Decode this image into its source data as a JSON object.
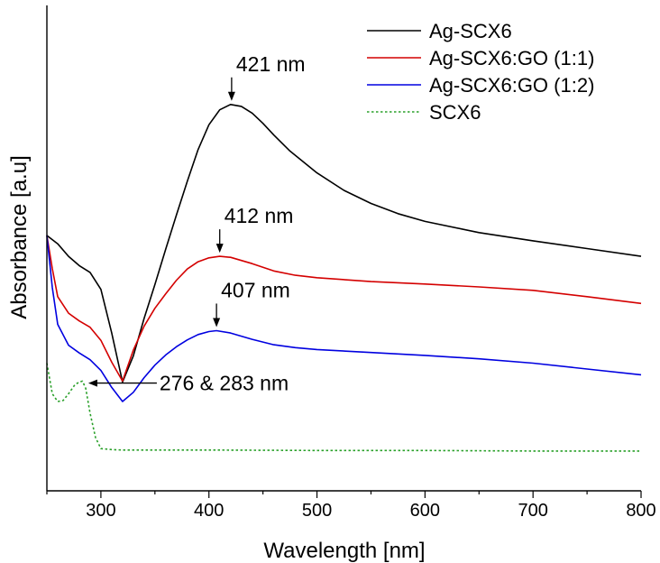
{
  "chart_data": {
    "type": "line",
    "title": "",
    "xlabel": "Wavelength [nm]",
    "ylabel": "Absorbance [a.u]",
    "xlim": [
      250,
      800
    ],
    "ylim": [
      0,
      1
    ],
    "xticks": [
      300,
      400,
      500,
      600,
      700,
      800
    ],
    "xtick_labels": [
      "300",
      "400",
      "500",
      "600",
      "700",
      "800"
    ],
    "yticks_shown": false,
    "legend_position": "top-right",
    "series": [
      {
        "name": "Ag-SCX6",
        "color": "#000000",
        "dash": "solid",
        "points": [
          [
            250,
            0.526
          ],
          [
            260,
            0.509
          ],
          [
            270,
            0.483
          ],
          [
            280,
            0.464
          ],
          [
            290,
            0.45
          ],
          [
            300,
            0.415
          ],
          [
            310,
            0.325
          ],
          [
            320,
            0.224
          ],
          [
            330,
            0.278
          ],
          [
            340,
            0.355
          ],
          [
            350,
            0.425
          ],
          [
            360,
            0.498
          ],
          [
            370,
            0.569
          ],
          [
            380,
            0.638
          ],
          [
            390,
            0.703
          ],
          [
            400,
            0.754
          ],
          [
            410,
            0.785
          ],
          [
            420,
            0.796
          ],
          [
            430,
            0.792
          ],
          [
            440,
            0.778
          ],
          [
            450,
            0.757
          ],
          [
            460,
            0.733
          ],
          [
            475,
            0.7
          ],
          [
            500,
            0.655
          ],
          [
            525,
            0.619
          ],
          [
            550,
            0.592
          ],
          [
            575,
            0.571
          ],
          [
            600,
            0.555
          ],
          [
            650,
            0.532
          ],
          [
            700,
            0.515
          ],
          [
            750,
            0.499
          ],
          [
            800,
            0.483
          ]
        ]
      },
      {
        "name": "Ag-SCX6:GO (1:1)",
        "color": "#d40000",
        "dash": "solid",
        "points": [
          [
            250,
            0.526
          ],
          [
            255,
            0.458
          ],
          [
            260,
            0.4
          ],
          [
            270,
            0.366
          ],
          [
            280,
            0.35
          ],
          [
            290,
            0.337
          ],
          [
            300,
            0.31
          ],
          [
            310,
            0.265
          ],
          [
            320,
            0.226
          ],
          [
            330,
            0.29
          ],
          [
            340,
            0.339
          ],
          [
            350,
            0.376
          ],
          [
            360,
            0.406
          ],
          [
            370,
            0.434
          ],
          [
            380,
            0.457
          ],
          [
            390,
            0.472
          ],
          [
            400,
            0.48
          ],
          [
            410,
            0.483
          ],
          [
            420,
            0.481
          ],
          [
            440,
            0.468
          ],
          [
            460,
            0.453
          ],
          [
            480,
            0.444
          ],
          [
            500,
            0.439
          ],
          [
            550,
            0.431
          ],
          [
            600,
            0.426
          ],
          [
            650,
            0.42
          ],
          [
            700,
            0.413
          ],
          [
            750,
            0.4
          ],
          [
            800,
            0.386
          ]
        ]
      },
      {
        "name": "Ag-SCX6:GO (1:2)",
        "color": "#0000e0",
        "dash": "solid",
        "points": [
          [
            250,
            0.526
          ],
          [
            255,
            0.419
          ],
          [
            260,
            0.343
          ],
          [
            270,
            0.3
          ],
          [
            280,
            0.284
          ],
          [
            290,
            0.27
          ],
          [
            300,
            0.248
          ],
          [
            310,
            0.213
          ],
          [
            320,
            0.184
          ],
          [
            330,
            0.203
          ],
          [
            340,
            0.233
          ],
          [
            350,
            0.259
          ],
          [
            360,
            0.28
          ],
          [
            370,
            0.297
          ],
          [
            380,
            0.311
          ],
          [
            390,
            0.322
          ],
          [
            400,
            0.328
          ],
          [
            407,
            0.33
          ],
          [
            420,
            0.325
          ],
          [
            440,
            0.312
          ],
          [
            460,
            0.301
          ],
          [
            480,
            0.295
          ],
          [
            500,
            0.291
          ],
          [
            550,
            0.285
          ],
          [
            600,
            0.279
          ],
          [
            650,
            0.272
          ],
          [
            700,
            0.263
          ],
          [
            750,
            0.251
          ],
          [
            800,
            0.239
          ]
        ]
      },
      {
        "name": "SCX6",
        "color": "#2aa02a",
        "dash": "dotted",
        "points": [
          [
            250,
            0.263
          ],
          [
            255,
            0.2
          ],
          [
            260,
            0.184
          ],
          [
            265,
            0.186
          ],
          [
            270,
            0.2
          ],
          [
            276,
            0.219
          ],
          [
            280,
            0.224
          ],
          [
            283,
            0.226
          ],
          [
            286,
            0.211
          ],
          [
            290,
            0.16
          ],
          [
            295,
            0.11
          ],
          [
            300,
            0.087
          ],
          [
            310,
            0.085
          ],
          [
            320,
            0.084
          ],
          [
            350,
            0.084
          ],
          [
            400,
            0.084
          ],
          [
            500,
            0.083
          ],
          [
            600,
            0.083
          ],
          [
            700,
            0.082
          ],
          [
            800,
            0.082
          ]
        ]
      }
    ],
    "annotations": [
      {
        "text": "421 nm",
        "x": 421,
        "y": 0.796,
        "arrow": "down",
        "text_side": "above"
      },
      {
        "text": "412 nm",
        "x": 410,
        "y": 0.483,
        "arrow": "down",
        "text_side": "above"
      },
      {
        "text": "407 nm",
        "x": 407,
        "y": 0.33,
        "arrow": "down",
        "text_side": "above"
      },
      {
        "text": "276 & 283 nm",
        "x": 285,
        "y": 0.222,
        "arrow": "left",
        "text_side": "right"
      }
    ]
  }
}
